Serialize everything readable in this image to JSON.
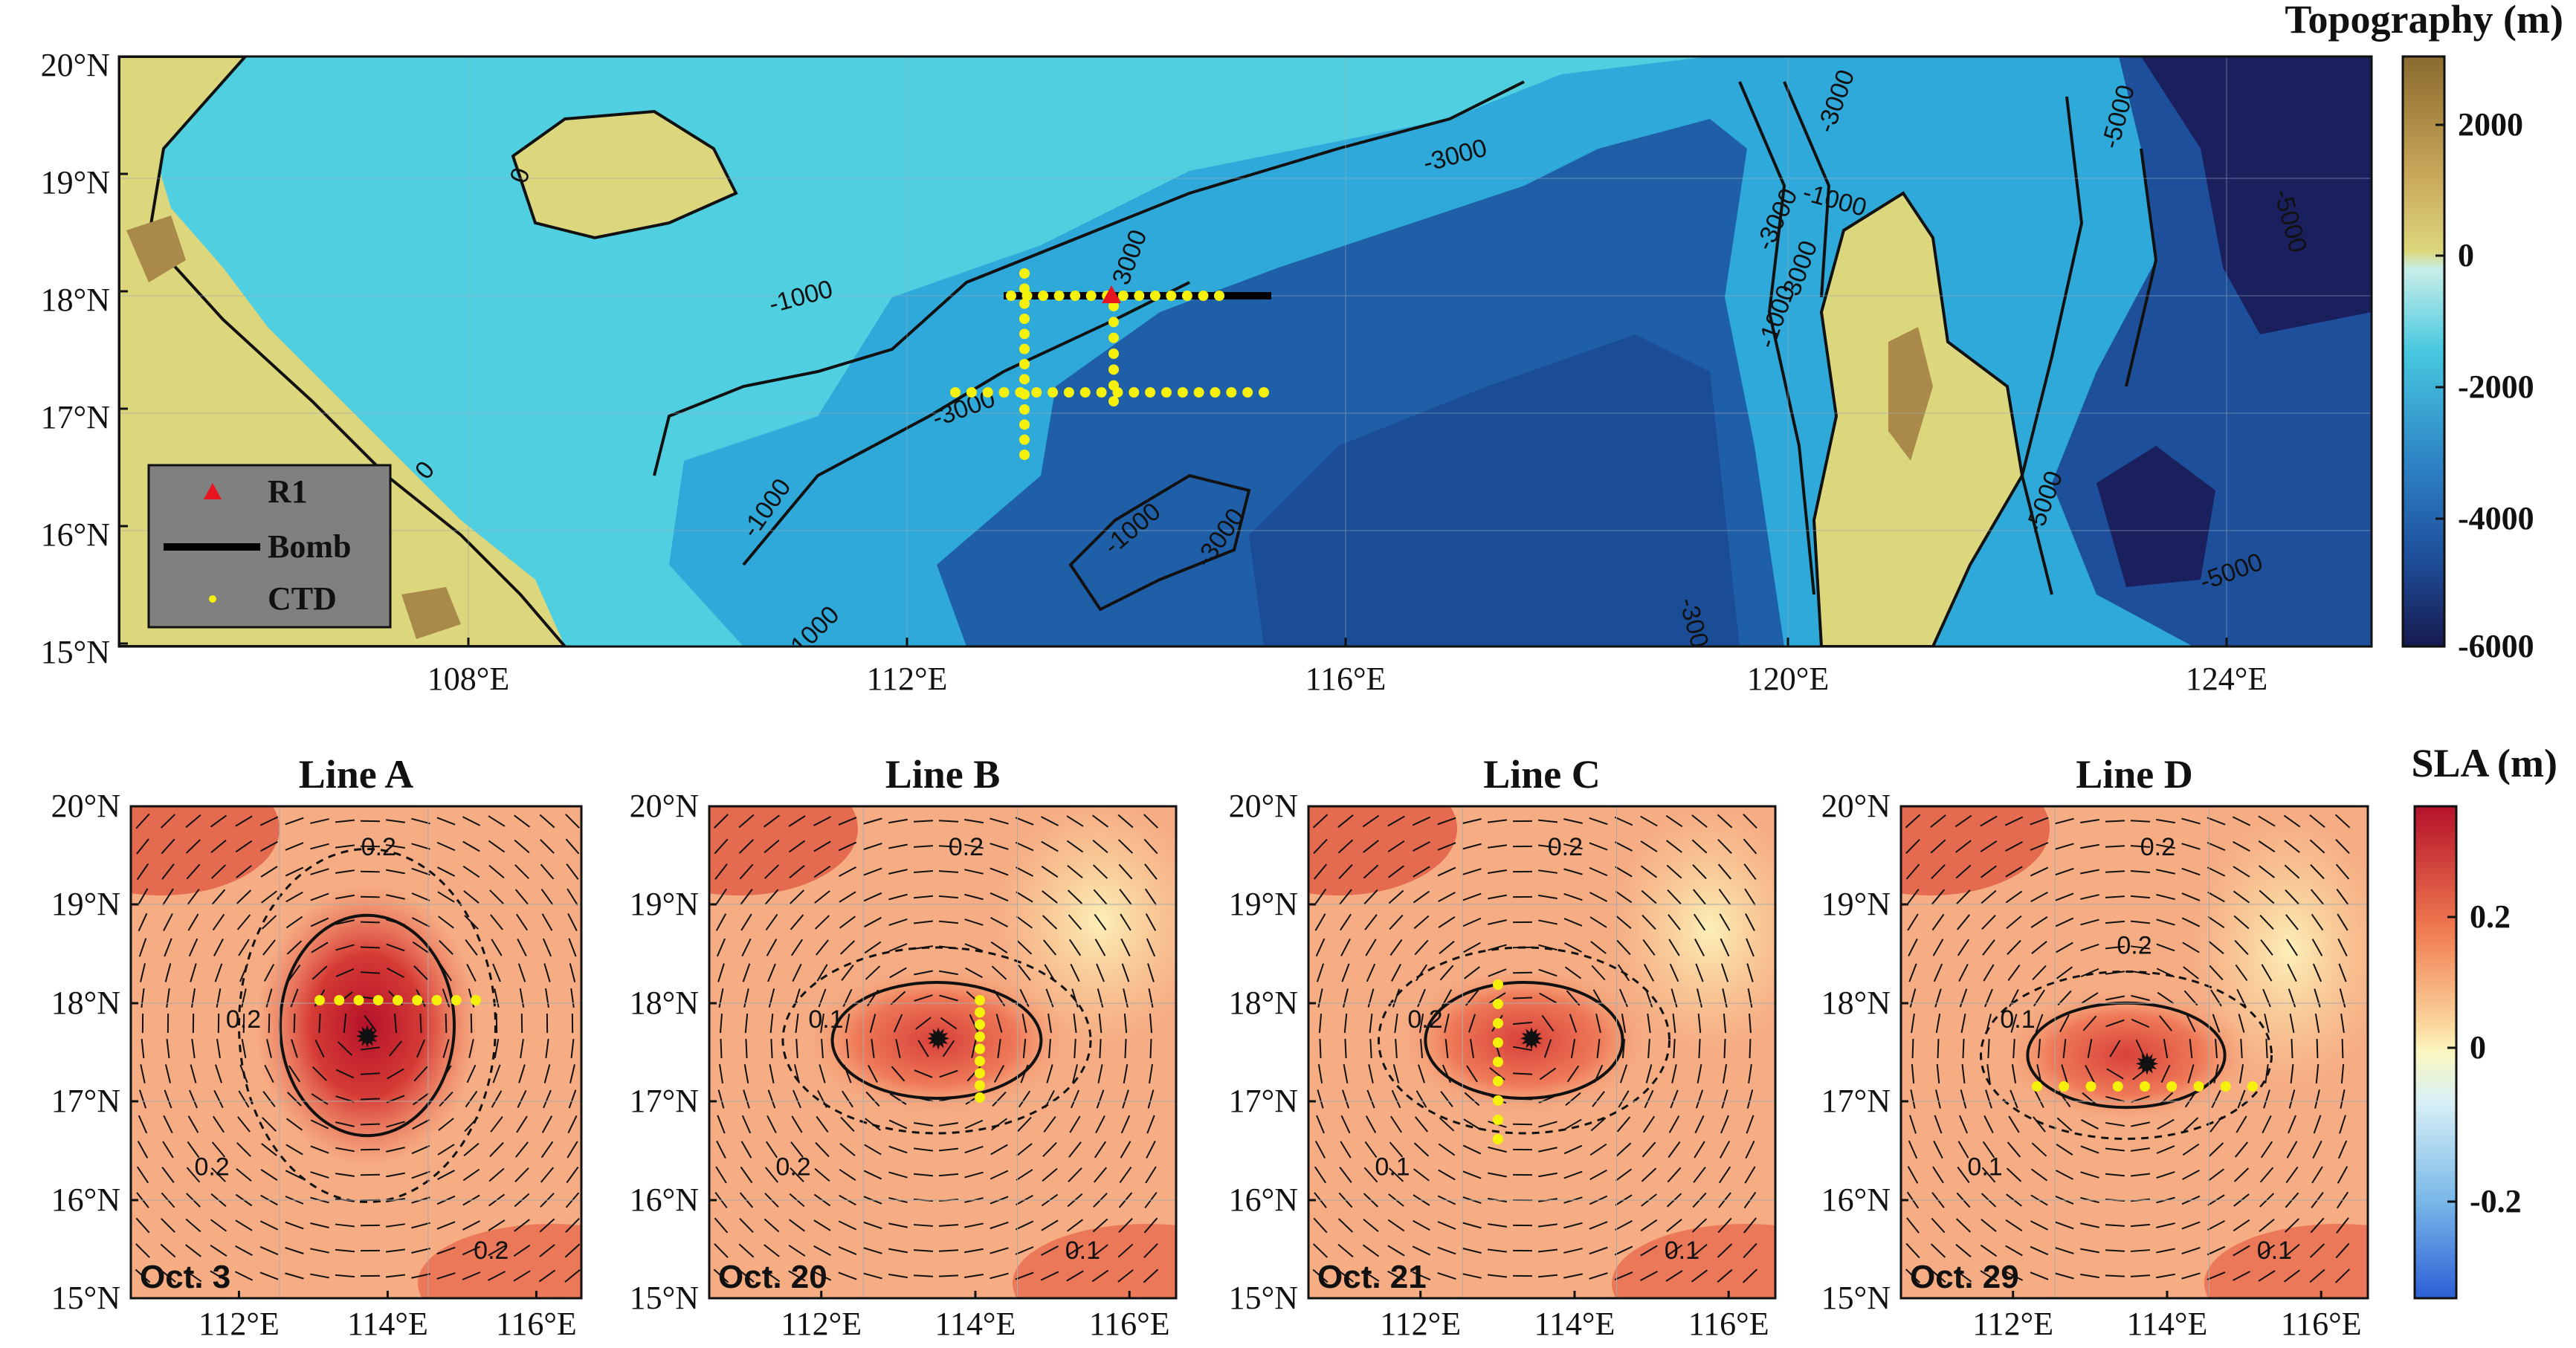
{
  "top_map": {
    "colorbar_title": "Topography (m)",
    "colorbar_ticks": [
      "2000",
      "0",
      "-2000",
      "-4000",
      "-6000"
    ],
    "lat_labels": [
      "20°N",
      "19°N",
      "18°N",
      "17°N",
      "16°N",
      "15°N"
    ],
    "lon_labels": [
      "108°E",
      "112°E",
      "116°E",
      "120°E",
      "124°E"
    ],
    "contour_labels": [
      "0",
      "0",
      "-1000",
      "-1000",
      "-1000",
      "-1000",
      "-1000",
      "-1000",
      "-3000",
      "-3000",
      "-3000",
      "-3000",
      "-3000",
      "-5000",
      "-5000",
      "-5000",
      "-5000",
      "3000",
      "-3000",
      "-3000"
    ],
    "legend": {
      "items": [
        {
          "label": "R1",
          "symbol": "red-triangle"
        },
        {
          "label": "Bomb",
          "symbol": "black-line"
        },
        {
          "label": "CTD",
          "symbol": "yellow-dot"
        }
      ]
    },
    "colors": {
      "land": "#d9d47a",
      "shelf": "#4fcfe0",
      "deep": "#1e4f9b",
      "abyss": "#1a1f5e",
      "cbar_top": "#8a6a2e",
      "cbar_bottom": "#161a4f"
    }
  },
  "panels": [
    {
      "title": "Line A",
      "date": "Oct. 3",
      "contour_labels": [
        "0.2",
        "0.2",
        "0.2",
        "0.2"
      ]
    },
    {
      "title": "Line B",
      "date": "Oct. 20",
      "contour_labels": [
        "0.2",
        "0.1",
        "0.2",
        "0.1"
      ]
    },
    {
      "title": "Line C",
      "date": "Oct. 21",
      "contour_labels": [
        "0.2",
        "0.2",
        "0.1",
        "0.1"
      ]
    },
    {
      "title": "Line D",
      "date": "Oct. 29",
      "contour_labels": [
        "0.2",
        "0.1",
        "0.1",
        "0.1",
        "0.2"
      ]
    }
  ],
  "panel_axes": {
    "lat_labels": [
      "20°N",
      "19°N",
      "18°N",
      "17°N",
      "16°N",
      "15°N"
    ],
    "lon_labels": [
      "112°E",
      "114°E",
      "116°E"
    ]
  },
  "sla_colorbar": {
    "title": "SLA (m)",
    "ticks": [
      "0.2",
      "0",
      "-0.2"
    ],
    "colors": {
      "high": "#c0202a",
      "mid": "#fbf7c0",
      "low": "#2c5fd6"
    }
  }
}
